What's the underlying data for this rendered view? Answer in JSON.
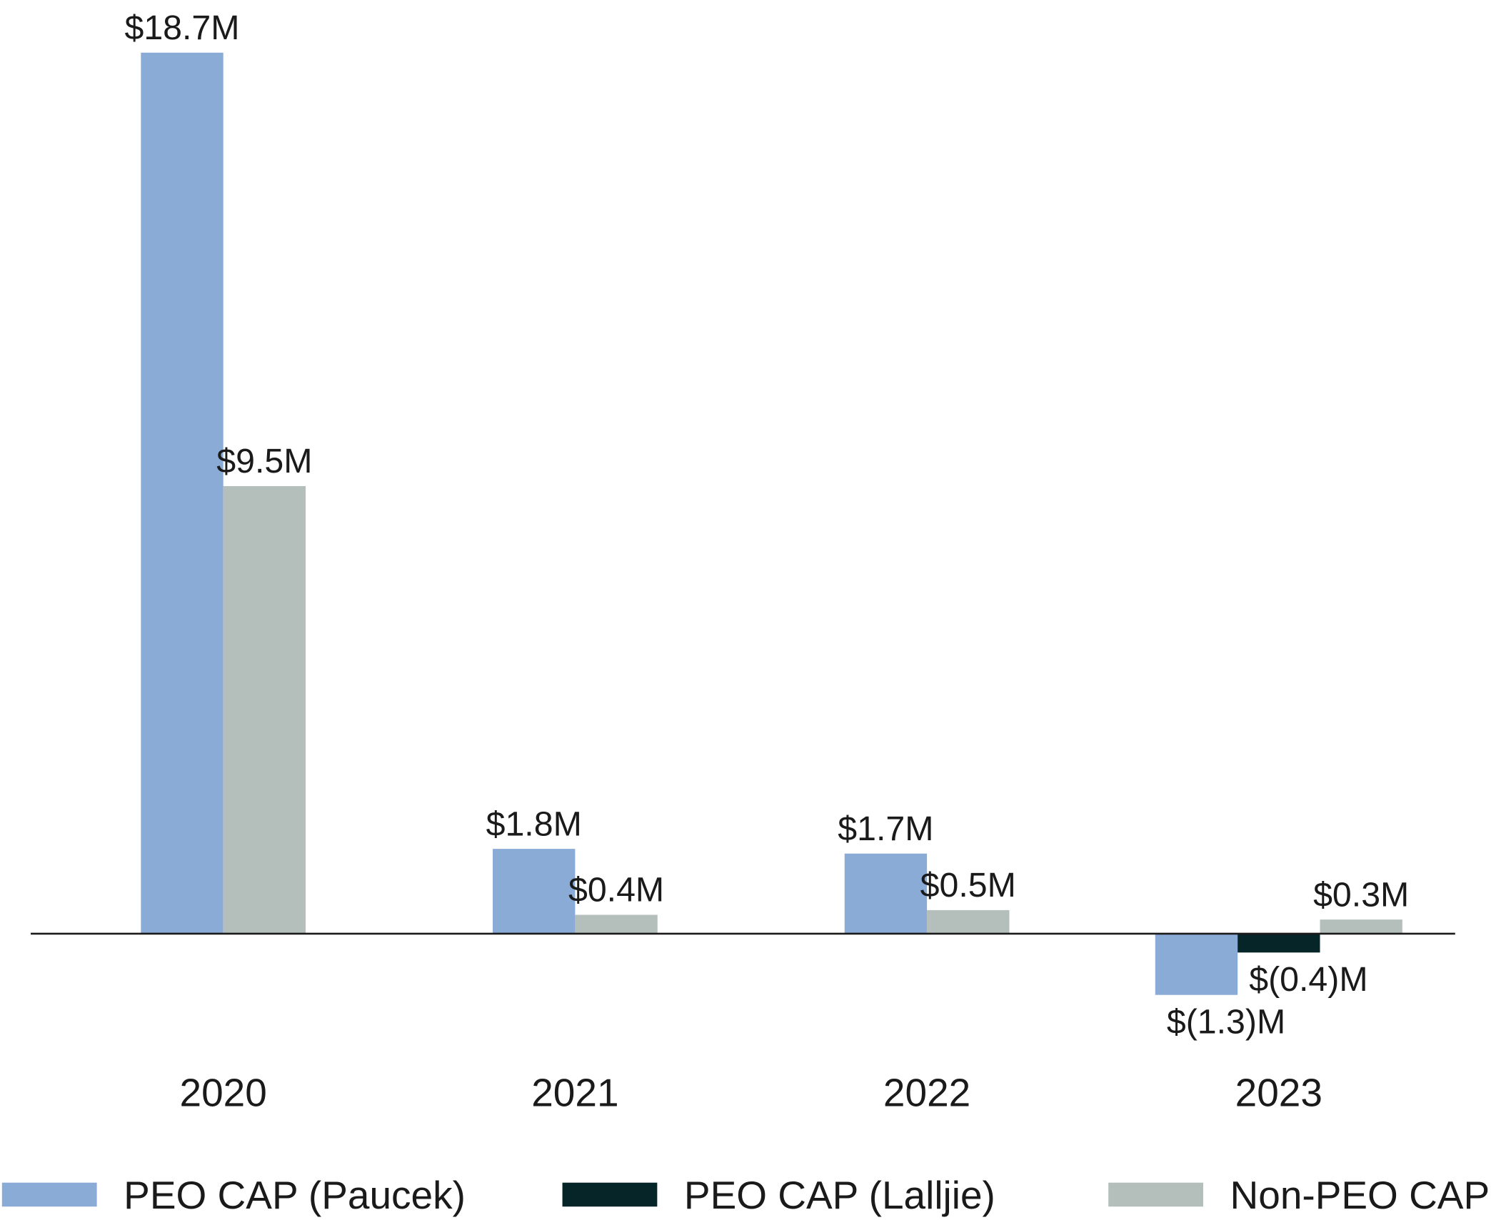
{
  "chart_data": {
    "type": "bar",
    "categories": [
      "2020",
      "2021",
      "2022",
      "2023"
    ],
    "series": [
      {
        "name": "PEO CAP (Paucek)",
        "color": "#8aabd6",
        "values": [
          18.7,
          1.8,
          1.7,
          -1.3
        ],
        "value_labels": [
          "$18.7M",
          "$1.8M",
          "$1.7M",
          "$(1.3)M"
        ]
      },
      {
        "name": "PEO CAP (Lalljie)",
        "color": "#062529",
        "values": [
          null,
          null,
          null,
          -0.4
        ],
        "value_labels": [
          null,
          null,
          null,
          "$(0.4)M"
        ]
      },
      {
        "name": "Non-PEO CAP",
        "color": "#b4bfbc",
        "values": [
          9.5,
          0.4,
          0.5,
          0.3
        ],
        "value_labels": [
          "$9.5M",
          "$0.4M",
          "$0.5M",
          "$0.3M"
        ]
      }
    ],
    "legend": "bottom"
  }
}
